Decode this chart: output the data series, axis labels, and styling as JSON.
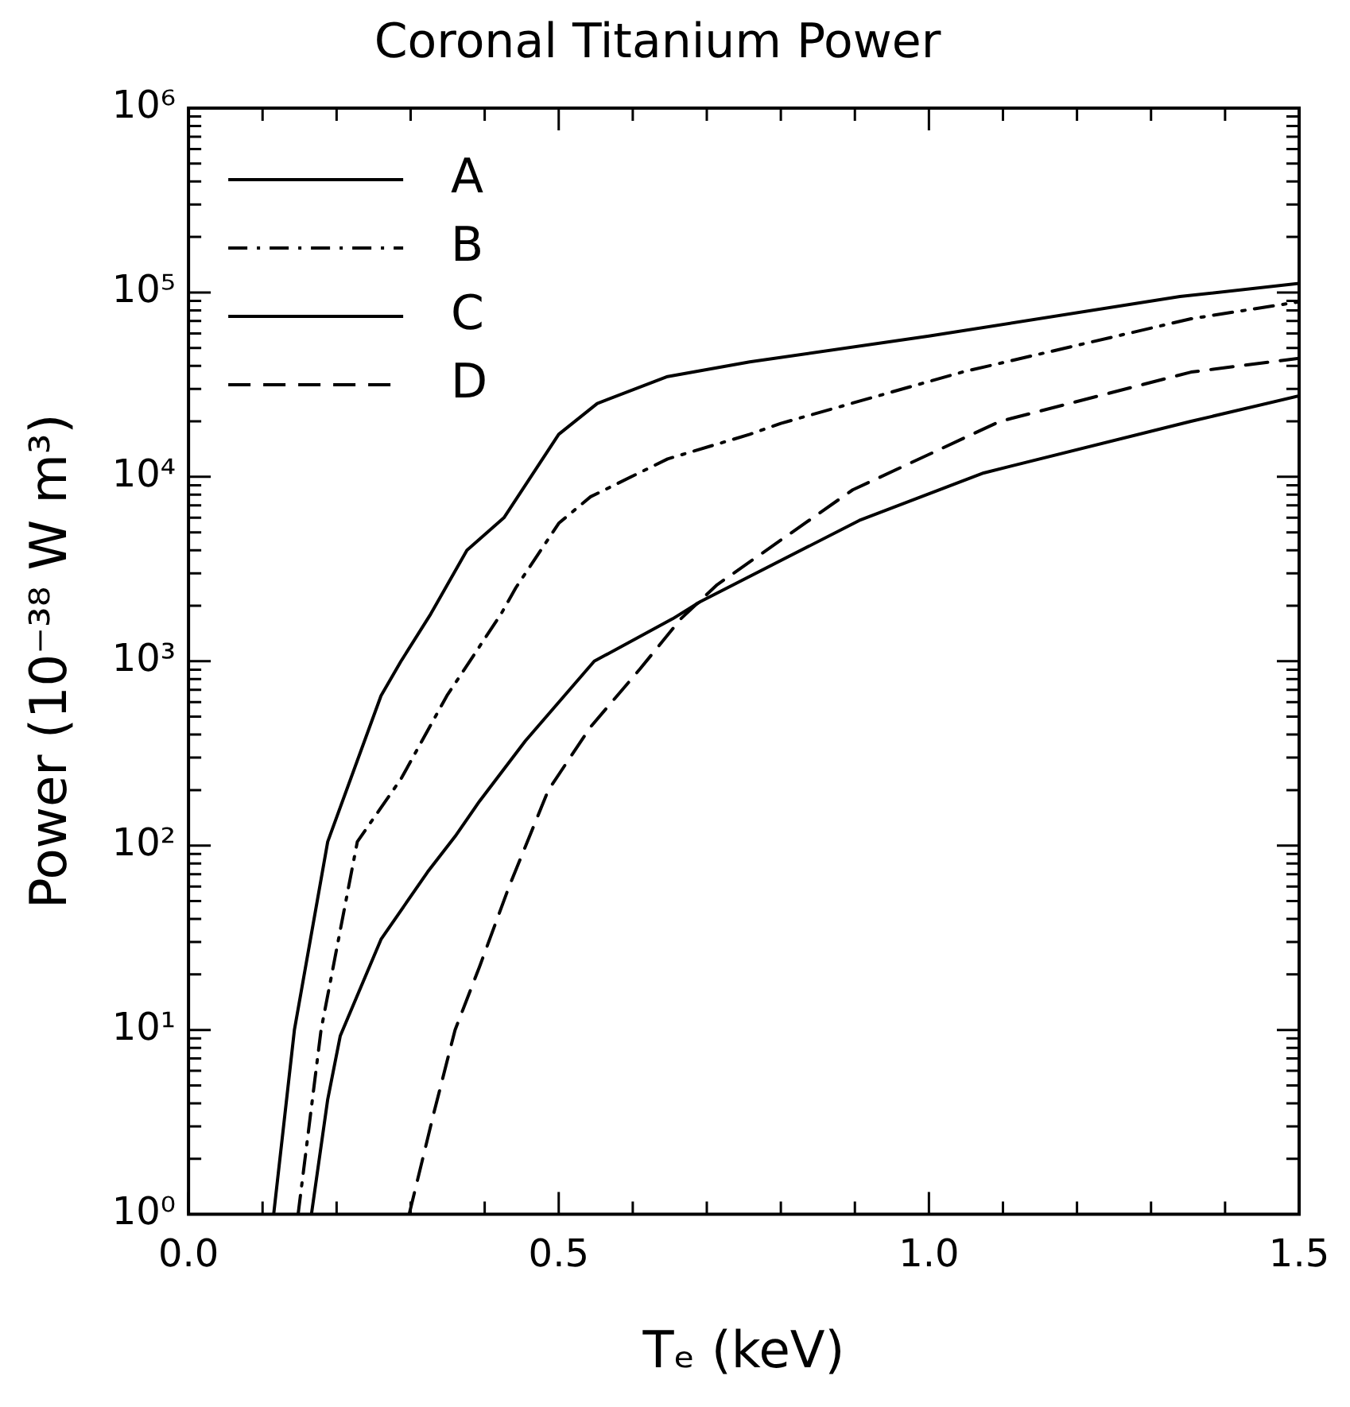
{
  "chart_data": {
    "type": "line",
    "title": "Coronal Titanium Power",
    "xlabel": "Tₑ (keV)",
    "ylabel": "Power (10⁻³⁸ W m³)",
    "log": "y",
    "grid": false,
    "legend": "top left",
    "marker": "none",
    "xlim": [
      0,
      1.5
    ],
    "xticks": [
      {
        "value": 0,
        "label": "0.0"
      },
      {
        "value": 0.5,
        "label": "0.5"
      },
      {
        "value": 1,
        "label": "1.0"
      },
      {
        "value": 1.5,
        "label": "1.5"
      }
    ],
    "ylim": [
      1,
      1000000
    ],
    "yticks": [
      {
        "value": 1,
        "label": "10⁰"
      },
      {
        "value": 10,
        "label": "10¹"
      },
      {
        "value": 100,
        "label": "10²"
      },
      {
        "value": 1000,
        "label": "10³"
      },
      {
        "value": 10000,
        "label": "10⁴"
      },
      {
        "value": 100000,
        "label": "10⁵"
      },
      {
        "value": 1000000,
        "label": "10⁶"
      }
    ],
    "series": [
      {
        "name": "A",
        "color": "#000000",
        "line_style": "solid",
        "x": [
          0.115,
          0.143,
          0.188,
          0.26,
          0.287,
          0.327,
          0.376,
          0.426,
          0.5,
          0.552,
          0.647,
          0.758,
          1.0,
          1.339,
          1.5
        ],
        "values": [
          1,
          10,
          105,
          650,
          1000,
          1800,
          4000,
          6000,
          17000,
          25000,
          35000,
          42000,
          58000,
          95000,
          112000
        ]
      },
      {
        "name": "B",
        "color": "#000000",
        "line_style": "dashdot",
        "x": [
          0.148,
          0.179,
          0.228,
          0.287,
          0.349,
          0.422,
          0.442,
          0.5,
          0.543,
          0.647,
          0.758,
          0.8,
          1.045,
          1.354,
          1.5
        ],
        "values": [
          1,
          10,
          105,
          230,
          650,
          1800,
          2500,
          5600,
          7800,
          12500,
          17000,
          19500,
          37000,
          72000,
          89000
        ]
      },
      {
        "name": "C",
        "color": "#000000",
        "line_style": "solid",
        "x": [
          0.166,
          0.188,
          0.205,
          0.26,
          0.323,
          0.36,
          0.393,
          0.455,
          0.548,
          0.654,
          0.691,
          0.906,
          1.074,
          1.354,
          1.5
        ],
        "values": [
          1,
          4.2,
          9.3,
          31,
          72,
          112,
          174,
          370,
          1000,
          1700,
          2100,
          5800,
          10500,
          20000,
          27500
        ]
      },
      {
        "name": "D",
        "color": "#000000",
        "line_style": "dashed",
        "x": [
          0.298,
          0.331,
          0.36,
          0.393,
          0.433,
          0.486,
          0.543,
          0.61,
          0.665,
          0.714,
          0.897,
          1.096,
          1.354,
          1.5
        ],
        "values": [
          1,
          3.5,
          10,
          22,
          60,
          200,
          440,
          910,
          1700,
          2600,
          8500,
          20000,
          37000,
          44000
        ]
      }
    ]
  }
}
